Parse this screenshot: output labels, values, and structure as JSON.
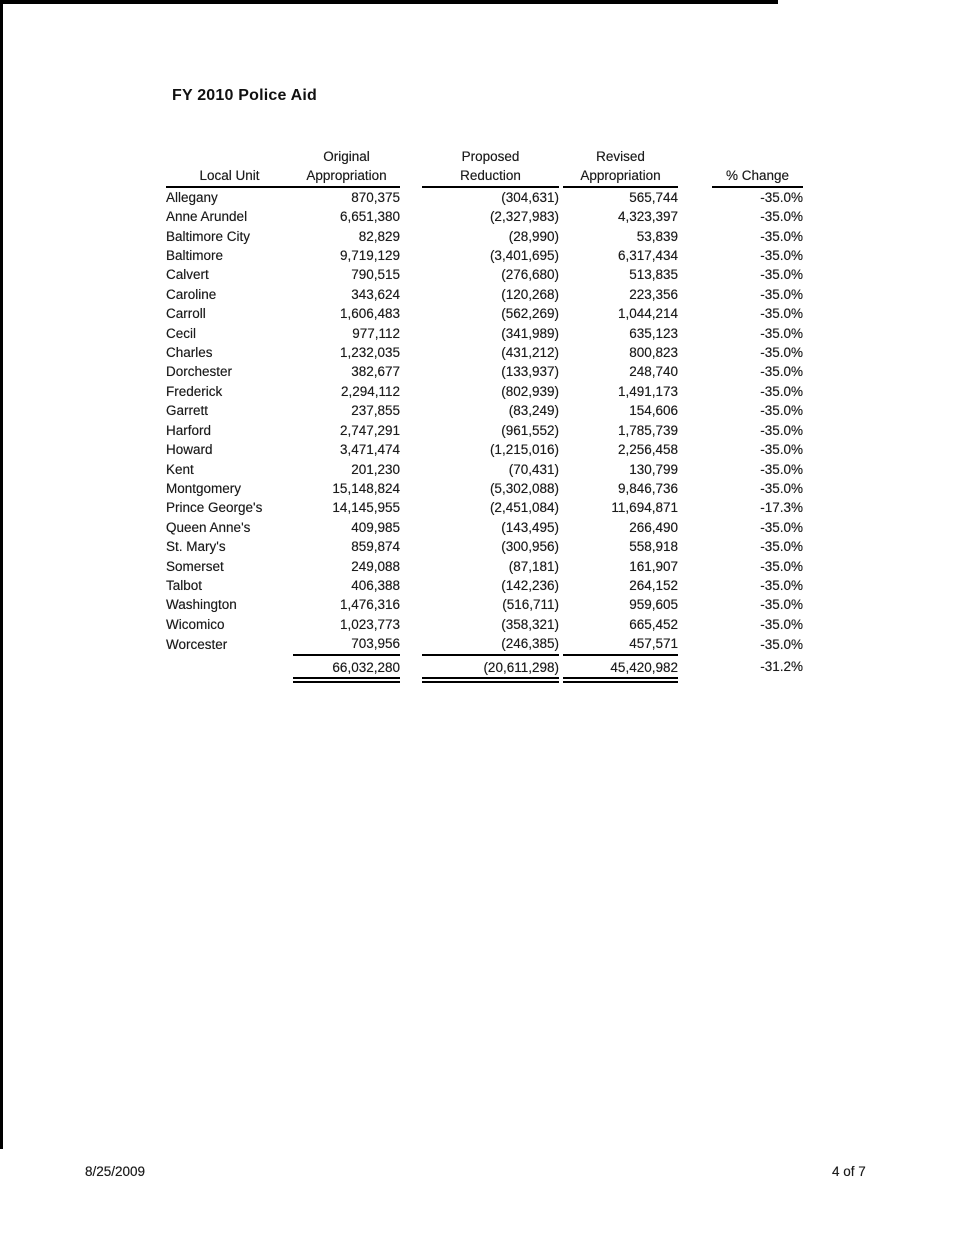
{
  "document": {
    "title": "FY 2010 Police Aid",
    "footer": {
      "date": "8/25/2009",
      "page_indicator": "4 of 7"
    }
  },
  "table": {
    "headers": {
      "local_unit": "Local Unit",
      "original_line1": "Original",
      "original_line2": "Appropriation",
      "proposed_line1": "Proposed",
      "proposed_line2": "Reduction",
      "revised_line1": "Revised",
      "revised_line2": "Appropriation",
      "pct_change": "% Change"
    },
    "rows": [
      {
        "local_unit": "Allegany",
        "original": "870,375",
        "reduction": "(304,631)",
        "revised": "565,744",
        "pct_change": "-35.0%"
      },
      {
        "local_unit": "Anne Arundel",
        "original": "6,651,380",
        "reduction": "(2,327,983)",
        "revised": "4,323,397",
        "pct_change": "-35.0%"
      },
      {
        "local_unit": "Baltimore City",
        "original": "82,829",
        "reduction": "(28,990)",
        "revised": "53,839",
        "pct_change": "-35.0%"
      },
      {
        "local_unit": "Baltimore",
        "original": "9,719,129",
        "reduction": "(3,401,695)",
        "revised": "6,317,434",
        "pct_change": "-35.0%"
      },
      {
        "local_unit": "Calvert",
        "original": "790,515",
        "reduction": "(276,680)",
        "revised": "513,835",
        "pct_change": "-35.0%"
      },
      {
        "local_unit": "Caroline",
        "original": "343,624",
        "reduction": "(120,268)",
        "revised": "223,356",
        "pct_change": "-35.0%"
      },
      {
        "local_unit": "Carroll",
        "original": "1,606,483",
        "reduction": "(562,269)",
        "revised": "1,044,214",
        "pct_change": "-35.0%"
      },
      {
        "local_unit": "Cecil",
        "original": "977,112",
        "reduction": "(341,989)",
        "revised": "635,123",
        "pct_change": "-35.0%"
      },
      {
        "local_unit": "Charles",
        "original": "1,232,035",
        "reduction": "(431,212)",
        "revised": "800,823",
        "pct_change": "-35.0%"
      },
      {
        "local_unit": "Dorchester",
        "original": "382,677",
        "reduction": "(133,937)",
        "revised": "248,740",
        "pct_change": "-35.0%"
      },
      {
        "local_unit": "Frederick",
        "original": "2,294,112",
        "reduction": "(802,939)",
        "revised": "1,491,173",
        "pct_change": "-35.0%"
      },
      {
        "local_unit": "Garrett",
        "original": "237,855",
        "reduction": "(83,249)",
        "revised": "154,606",
        "pct_change": "-35.0%"
      },
      {
        "local_unit": "Harford",
        "original": "2,747,291",
        "reduction": "(961,552)",
        "revised": "1,785,739",
        "pct_change": "-35.0%"
      },
      {
        "local_unit": "Howard",
        "original": "3,471,474",
        "reduction": "(1,215,016)",
        "revised": "2,256,458",
        "pct_change": "-35.0%"
      },
      {
        "local_unit": "Kent",
        "original": "201,230",
        "reduction": "(70,431)",
        "revised": "130,799",
        "pct_change": "-35.0%"
      },
      {
        "local_unit": "Montgomery",
        "original": "15,148,824",
        "reduction": "(5,302,088)",
        "revised": "9,846,736",
        "pct_change": "-35.0%"
      },
      {
        "local_unit": "Prince George's",
        "original": "14,145,955",
        "reduction": "(2,451,084)",
        "revised": "11,694,871",
        "pct_change": "-17.3%"
      },
      {
        "local_unit": "Queen Anne's",
        "original": "409,985",
        "reduction": "(143,495)",
        "revised": "266,490",
        "pct_change": "-35.0%"
      },
      {
        "local_unit": "St. Mary's",
        "original": "859,874",
        "reduction": "(300,956)",
        "revised": "558,918",
        "pct_change": "-35.0%"
      },
      {
        "local_unit": "Somerset",
        "original": "249,088",
        "reduction": "(87,181)",
        "revised": "161,907",
        "pct_change": "-35.0%"
      },
      {
        "local_unit": "Talbot",
        "original": "406,388",
        "reduction": "(142,236)",
        "revised": "264,152",
        "pct_change": "-35.0%"
      },
      {
        "local_unit": "Washington",
        "original": "1,476,316",
        "reduction": "(516,711)",
        "revised": "959,605",
        "pct_change": "-35.0%"
      },
      {
        "local_unit": "Wicomico",
        "original": "1,023,773",
        "reduction": "(358,321)",
        "revised": "665,452",
        "pct_change": "-35.0%"
      },
      {
        "local_unit": "Worcester",
        "original": "703,956",
        "reduction": "(246,385)",
        "revised": "457,571",
        "pct_change": "-35.0%"
      }
    ],
    "totals": {
      "original": "66,032,280",
      "reduction": "(20,611,298)",
      "revised": "45,420,982",
      "pct_change": "-31.2%"
    }
  }
}
